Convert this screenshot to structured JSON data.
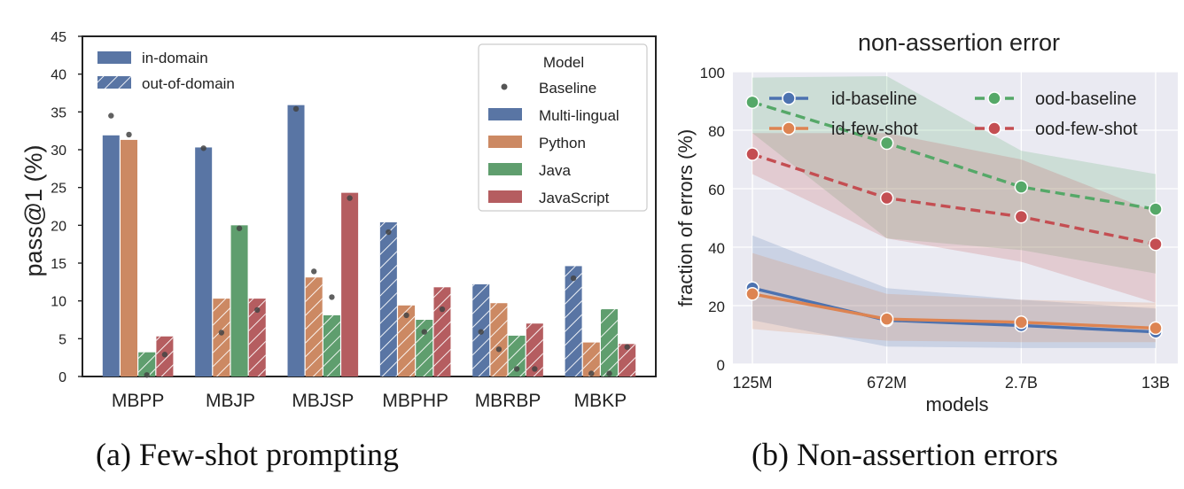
{
  "captions": {
    "a": "(a) Few-shot prompting",
    "b": "(b) Non-assertion errors"
  },
  "chart_data": [
    {
      "type": "bar",
      "title": "",
      "xlabel": "",
      "ylabel": "pass@1 (%)",
      "ylim": [
        0,
        45
      ],
      "yticks": [
        0,
        5,
        10,
        15,
        20,
        25,
        30,
        35,
        40,
        45
      ],
      "categories": [
        "MBPP",
        "MBJP",
        "MBJSP",
        "MBPHP",
        "MBRBP",
        "MBKP"
      ],
      "in_domain_category": {
        "MBPP": "Python",
        "MBJP": "Java",
        "MBJSP": "JavaScript"
      },
      "series": [
        {
          "name": "Multi-lingual",
          "color": "#5975a4",
          "values": [
            31.9,
            30.3,
            35.9,
            20.4,
            12.2,
            14.6
          ]
        },
        {
          "name": "Python",
          "color": "#cc8963",
          "values": [
            31.3,
            10.3,
            13.1,
            9.4,
            9.7,
            4.5
          ]
        },
        {
          "name": "Java",
          "color": "#5f9e6e",
          "values": [
            3.2,
            20.0,
            8.1,
            7.5,
            5.4,
            8.9
          ]
        },
        {
          "name": "JavaScript",
          "color": "#b55d60",
          "values": [
            5.3,
            10.3,
            24.3,
            11.8,
            7.0,
            4.3
          ]
        }
      ],
      "baseline": {
        "name": "Baseline",
        "values": [
          [
            34.5,
            32.0,
            0.2,
            2.9
          ],
          [
            30.2,
            5.8,
            19.6,
            8.8
          ],
          [
            35.4,
            13.9,
            10.5,
            23.6
          ],
          [
            19.1,
            8.1,
            5.9,
            8.9
          ],
          [
            5.9,
            3.6,
            1.0,
            1.0
          ],
          [
            13.0,
            0.4,
            0.4,
            3.9
          ]
        ]
      },
      "legend_hatch": {
        "solid": "in-domain",
        "hatched": "out-of-domain"
      },
      "legend_title": "Model",
      "legend_placement": "top-right",
      "grid": false
    },
    {
      "type": "line",
      "title": "non-assertion error",
      "xlabel": "models",
      "ylabel": "fraction of errors (%)",
      "ylim": [
        0,
        100
      ],
      "yticks": [
        0,
        20,
        40,
        60,
        80,
        100
      ],
      "x": [
        "125M",
        "672M",
        "2.7B",
        "13B"
      ],
      "series": [
        {
          "name": "id-baseline",
          "color": "#4c72b0",
          "style": "solid",
          "values": [
            26.0,
            15.0,
            13.2,
            11.0
          ],
          "band_low": [
            15.0,
            6.0,
            5.5,
            5.5
          ],
          "band_high": [
            44.0,
            26.0,
            22.0,
            19.0
          ]
        },
        {
          "name": "id-few-shot",
          "color": "#dd8452",
          "style": "solid",
          "values": [
            24.0,
            15.4,
            14.3,
            12.3
          ],
          "band_low": [
            12.0,
            8.0,
            7.5,
            7.5
          ],
          "band_high": [
            38.0,
            24.0,
            22.0,
            21.0
          ]
        },
        {
          "name": "ood-baseline",
          "color": "#55a868",
          "style": "dashed",
          "values": [
            89.6,
            75.6,
            60.6,
            53.0
          ],
          "band_low": [
            79.0,
            43.0,
            39.0,
            31.0
          ],
          "band_high": [
            98.0,
            98.5,
            73.0,
            65.0
          ]
        },
        {
          "name": "ood-few-shot",
          "color": "#c44e52",
          "style": "dashed",
          "values": [
            71.8,
            56.8,
            50.4,
            41.0
          ],
          "band_low": [
            65.0,
            43.0,
            35.0,
            21.0
          ],
          "band_high": [
            79.0,
            79.0,
            70.0,
            52.0
          ]
        }
      ],
      "legend_placement": "top",
      "grid": true
    }
  ]
}
